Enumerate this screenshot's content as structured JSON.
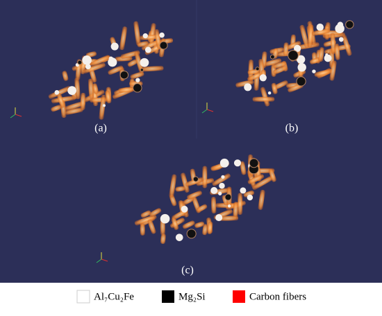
{
  "panels": [
    {
      "label": "(a)"
    },
    {
      "label": "(b)"
    },
    {
      "label": "(c)"
    }
  ],
  "legend": [
    {
      "label": "Al₇Cu₂Fe"
    },
    {
      "label": "Mg₂Si"
    },
    {
      "label": "Carbon fibers"
    }
  ]
}
